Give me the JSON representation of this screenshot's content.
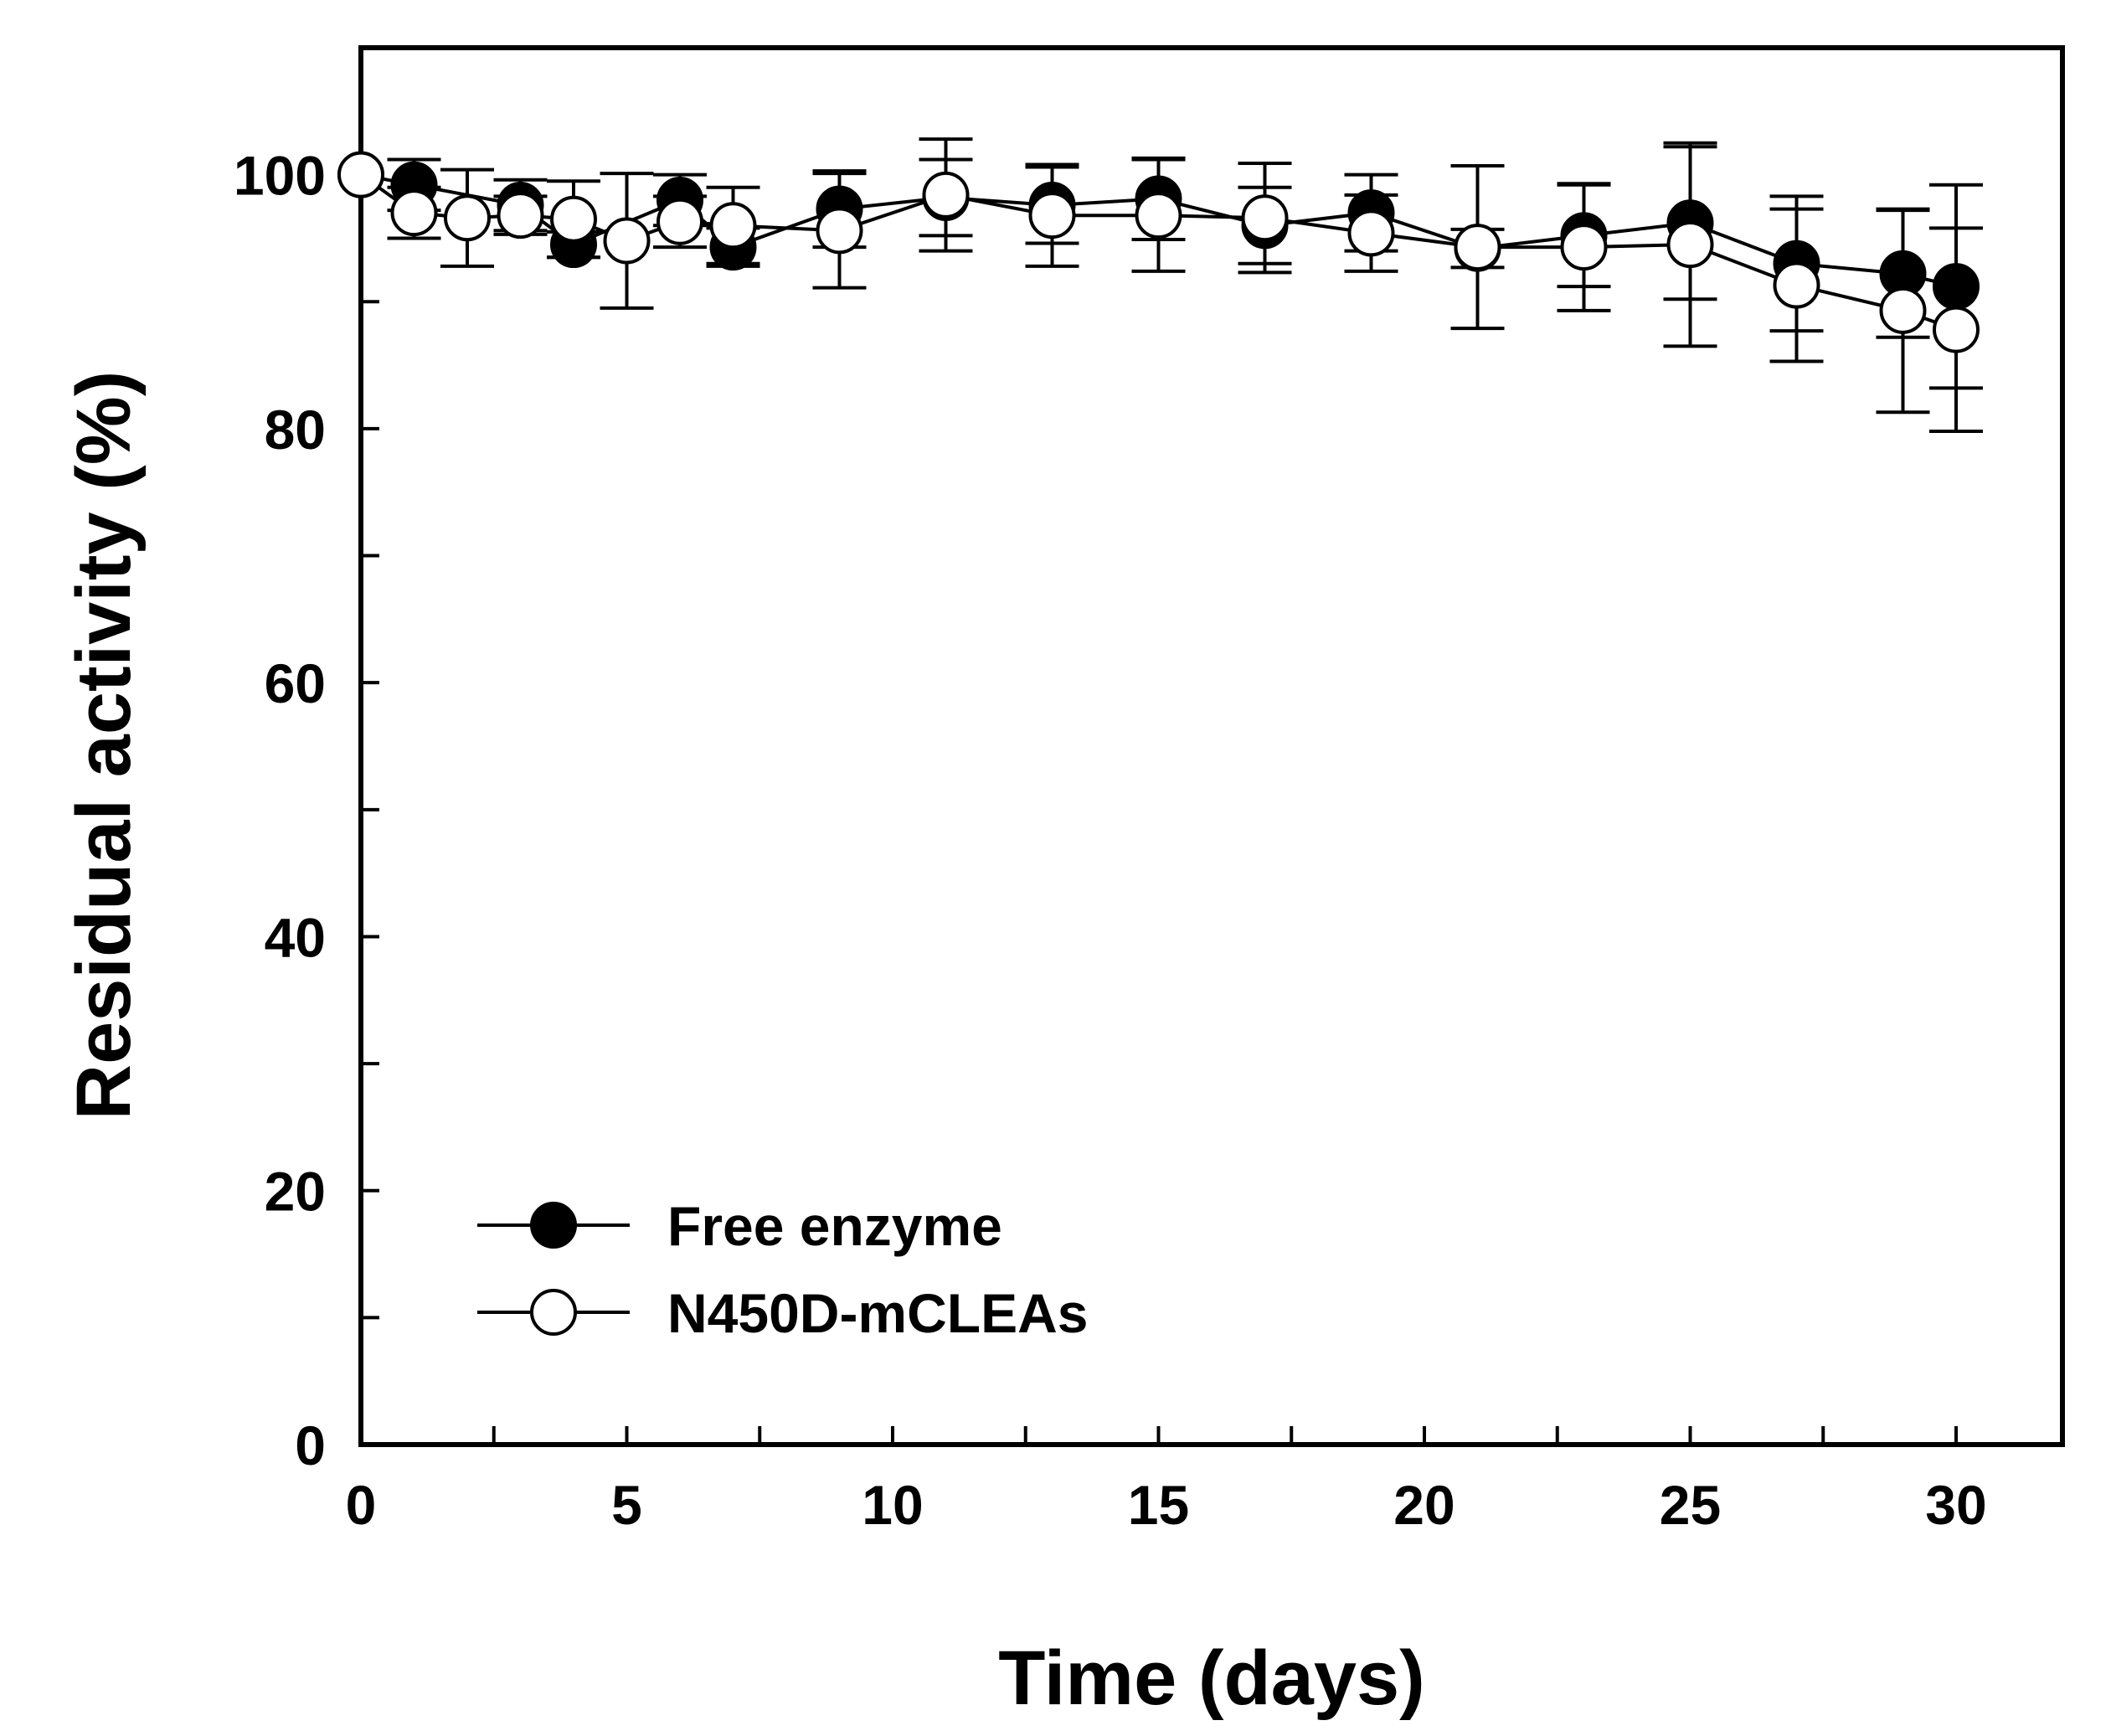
{
  "chart_data": {
    "type": "line",
    "title": "",
    "xlabel": "Time (days)",
    "ylabel": "Residual activity (%)",
    "xlim": [
      0,
      32
    ],
    "ylim": [
      0,
      110
    ],
    "x_major_ticks": [
      0,
      5,
      10,
      15,
      20,
      25,
      30
    ],
    "x_tick_labels": [
      "0",
      "5",
      "10",
      "15",
      "20",
      "25",
      "30"
    ],
    "x_minor_ticks": [
      2.5,
      7.5,
      12.5,
      17.5,
      22.5,
      27.5
    ],
    "y_major_ticks": [
      0,
      20,
      40,
      60,
      80,
      100
    ],
    "y_tick_labels": [
      "0",
      "20",
      "40",
      "60",
      "80",
      "100"
    ],
    "y_minor_ticks": [
      10,
      30,
      50,
      70,
      90
    ],
    "grid": false,
    "legend_position": "bottom-left",
    "series": [
      {
        "name": "Free enzyme",
        "marker": "filled-circle",
        "color": "#000000",
        "points": [
          {
            "x": 0,
            "y": 100,
            "err": 0
          },
          {
            "x": 1,
            "y": 99.2,
            "err": 2.0
          },
          {
            "x": 3,
            "y": 97.6,
            "err": 2.0
          },
          {
            "x": 4,
            "y": 94.5,
            "err": 1.0
          },
          {
            "x": 6,
            "y": 98.0,
            "err": 2.0
          },
          {
            "x": 7,
            "y": 94.3,
            "err": 1.5
          },
          {
            "x": 9,
            "y": 97.3,
            "err": 3.0
          },
          {
            "x": 11,
            "y": 98.2,
            "err": 3.0
          },
          {
            "x": 13,
            "y": 97.6,
            "err": 3.0
          },
          {
            "x": 15,
            "y": 98.1,
            "err": 3.2
          },
          {
            "x": 17,
            "y": 96.0,
            "err": 3.0
          },
          {
            "x": 19,
            "y": 97.0,
            "err": 3.0
          },
          {
            "x": 21,
            "y": 94.2,
            "err": 1.5
          },
          {
            "x": 23,
            "y": 95.2,
            "err": 4.0
          },
          {
            "x": 25,
            "y": 96.2,
            "err": 6.0
          },
          {
            "x": 27,
            "y": 93.0,
            "err": 5.3
          },
          {
            "x": 29,
            "y": 92.2,
            "err": 5.0
          },
          {
            "x": 30,
            "y": 91.2,
            "err": 8.0
          }
        ]
      },
      {
        "name": "N450D-mCLEAs",
        "marker": "open-circle",
        "color": "#000000",
        "points": [
          {
            "x": 0,
            "y": 100,
            "err": 0
          },
          {
            "x": 1,
            "y": 97.0,
            "err": 2.0
          },
          {
            "x": 2,
            "y": 96.6,
            "err": 3.8
          },
          {
            "x": 3,
            "y": 96.8,
            "err": 1.5
          },
          {
            "x": 4,
            "y": 96.5,
            "err": 3.0
          },
          {
            "x": 5,
            "y": 94.8,
            "err": 5.3
          },
          {
            "x": 6,
            "y": 96.3,
            "err": 2.0
          },
          {
            "x": 7,
            "y": 96.0,
            "err": 3.0
          },
          {
            "x": 9,
            "y": 95.6,
            "err": 4.5
          },
          {
            "x": 11,
            "y": 98.4,
            "err": 4.4
          },
          {
            "x": 13,
            "y": 96.8,
            "err": 4.0
          },
          {
            "x": 15,
            "y": 96.8,
            "err": 4.4
          },
          {
            "x": 17,
            "y": 96.6,
            "err": 4.3
          },
          {
            "x": 19,
            "y": 95.4,
            "err": 3.0
          },
          {
            "x": 21,
            "y": 94.3,
            "err": 6.4
          },
          {
            "x": 23,
            "y": 94.3,
            "err": 5.0
          },
          {
            "x": 25,
            "y": 94.5,
            "err": 8.0
          },
          {
            "x": 27,
            "y": 91.3,
            "err": 6.0
          },
          {
            "x": 29,
            "y": 89.3,
            "err": 8.0
          },
          {
            "x": 30,
            "y": 87.8,
            "err": 8.0
          }
        ]
      }
    ]
  }
}
